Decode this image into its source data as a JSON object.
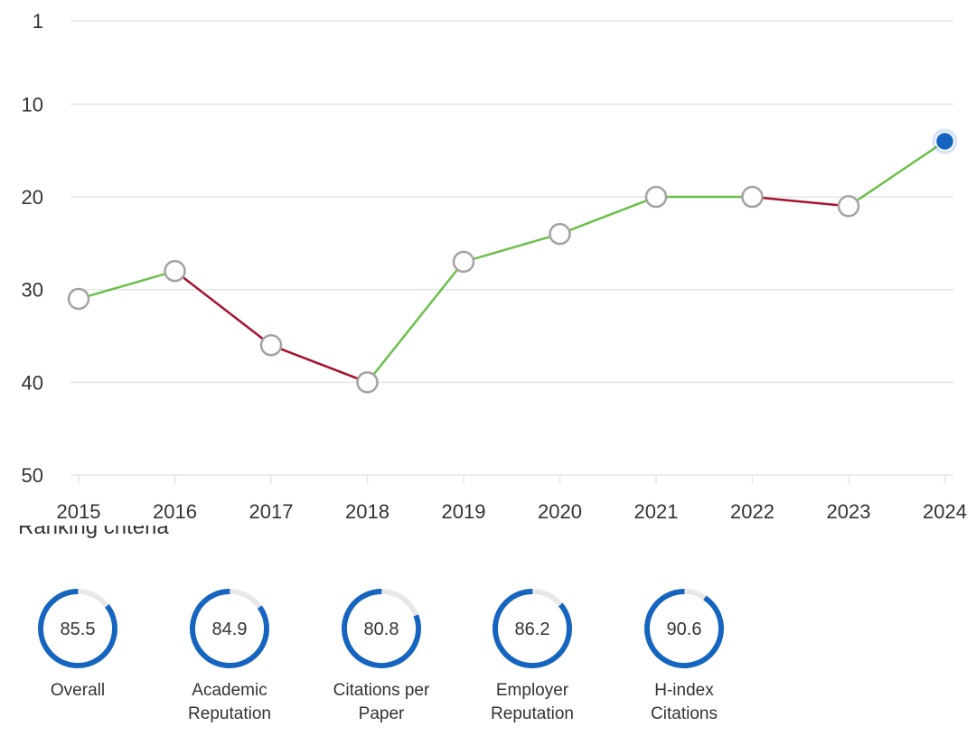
{
  "chart_data": {
    "type": "line",
    "title": "",
    "xlabel": "",
    "ylabel": "",
    "y_inverted": true,
    "ylim": [
      1,
      50
    ],
    "yticks": [
      "1",
      "10",
      "20",
      "30",
      "40",
      "50"
    ],
    "categories": [
      "2015",
      "2016",
      "2017",
      "2018",
      "2019",
      "2020",
      "2021",
      "2022",
      "2023",
      "2024"
    ],
    "series": [
      {
        "values": [
          31,
          28,
          36,
          40,
          27,
          24,
          20,
          20,
          21,
          14
        ]
      }
    ],
    "colors": {
      "improve": "#6cc04a",
      "decline": "#a6112e",
      "grid": "#e6e6e6",
      "marker_stroke": "#a3a3a3",
      "highlight": "#1565c0"
    },
    "highlighted_point": "2024",
    "grid": true,
    "legend": "none"
  },
  "section": {
    "heading": "Ranking criteria"
  },
  "criteria": [
    {
      "value": "85.5",
      "label_lines": [
        "Overall"
      ],
      "score": 85.5
    },
    {
      "value": "84.9",
      "label_lines": [
        "Academic",
        "Reputation"
      ],
      "score": 84.9
    },
    {
      "value": "80.8",
      "label_lines": [
        "Citations per",
        "Paper"
      ],
      "score": 80.8
    },
    {
      "value": "86.2",
      "label_lines": [
        "Employer",
        "Reputation"
      ],
      "score": 86.2
    },
    {
      "value": "90.6",
      "label_lines": [
        "H-index",
        "Citations"
      ],
      "score": 90.6
    }
  ],
  "ring_colors": {
    "fill": "#1565c0",
    "track": "#e8e8e8"
  }
}
